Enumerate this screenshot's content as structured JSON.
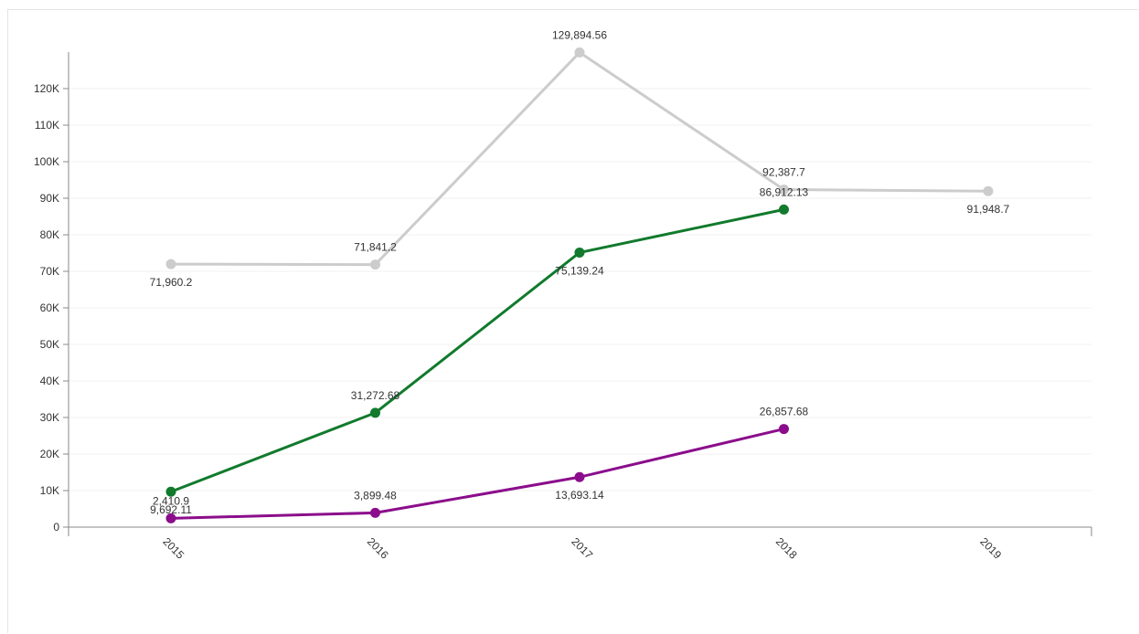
{
  "chart_data": {
    "type": "line",
    "title": "",
    "xlabel": "",
    "ylabel": "",
    "x": [
      "2015",
      "2016",
      "2017",
      "2018",
      "2019"
    ],
    "ylim": [
      0,
      130000
    ],
    "yticks": [
      0,
      10000,
      20000,
      30000,
      40000,
      50000,
      60000,
      70000,
      80000,
      90000,
      100000,
      110000,
      120000
    ],
    "ytick_labels": [
      "0",
      "10K",
      "20K",
      "30K",
      "40K",
      "50K",
      "60K",
      "70K",
      "80K",
      "90K",
      "100K",
      "110K",
      "120K"
    ],
    "grid": true,
    "series": [
      {
        "color": "#cccccc",
        "values": [
          71960.2,
          71841.2,
          129894.56,
          92387.7,
          91948.7
        ],
        "labels": [
          "71,960.2",
          "71,841.2",
          "129,894.56",
          "92,387.7",
          "91,948.7"
        ]
      },
      {
        "color": "#117a2d",
        "values": [
          9692.11,
          31272.68,
          75139.24,
          86912.13,
          null
        ],
        "labels": [
          "9,692.11",
          "31,272.68",
          "75,139.24",
          "86,912.13",
          null
        ]
      },
      {
        "color": "#8b0d8b",
        "values": [
          2410.9,
          3899.48,
          13693.14,
          26857.68,
          null
        ],
        "labels": [
          "2,410.9",
          "3,899.48",
          "13,693.14",
          "26,857.68",
          null
        ]
      }
    ]
  }
}
